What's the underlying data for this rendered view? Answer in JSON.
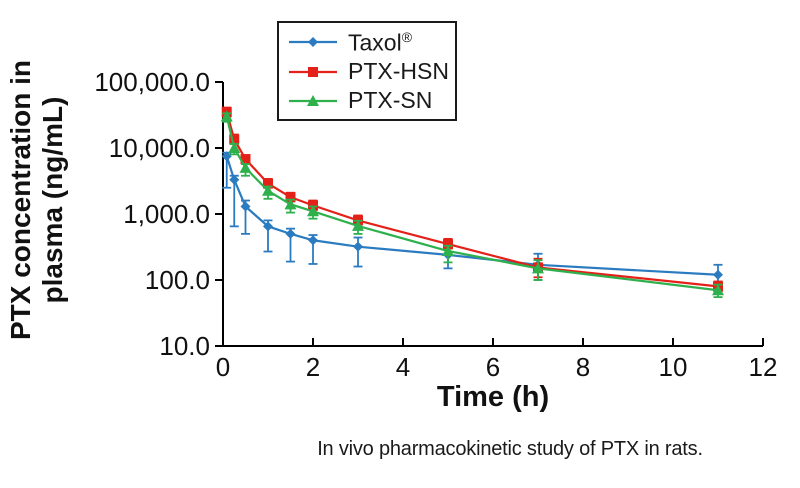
{
  "figure": {
    "caption": "In vivo pharmacokinetic study of PTX in rats."
  },
  "colors": {
    "axis": "#000000",
    "taxol_blue": "#2B7BC0",
    "ptx_hsn_red": "#E32119",
    "ptx_sn_green": "#2EB04C",
    "background": "#FFFFFF"
  },
  "chart_data": {
    "type": "line",
    "title": "",
    "xlabel": "Time (h)",
    "ylabel": "PTX concentration in plasma (ng/mL)",
    "ylabel_line1": "PTX concentration in",
    "ylabel_line2": "plasma (ng/mL)",
    "y_scale": "log",
    "x_axis": {
      "min": 0,
      "max": 12,
      "tick_values": [
        0,
        2,
        4,
        6,
        8,
        10,
        12
      ],
      "tick_labels": [
        "0",
        "2",
        "4",
        "6",
        "8",
        "10",
        "12"
      ]
    },
    "y_axis": {
      "min": 10,
      "max": 100000,
      "tick_values": [
        100000,
        10000,
        1000,
        100,
        10
      ],
      "tick_labels": [
        "100,000.0",
        "10,000.0",
        "1,000.0",
        "100.0",
        "10.0"
      ]
    },
    "grid": false,
    "legend_position": "top-center-inside-bordered",
    "x": [
      0.083,
      0.25,
      0.5,
      1,
      1.5,
      2,
      3,
      5,
      7,
      11
    ],
    "series": [
      {
        "name": "Taxol®",
        "marker": "diamond",
        "color": "#2B7BC0",
        "values": [
          7500,
          3300,
          1300,
          650,
          500,
          400,
          320,
          240,
          170,
          120
        ],
        "err_lo": [
          2500,
          650,
          500,
          270,
          190,
          175,
          160,
          150,
          100,
          85
        ],
        "err_hi": [
          8500,
          3800,
          1600,
          800,
          600,
          480,
          440,
          400,
          250,
          170
        ]
      },
      {
        "name": "PTX-HSN",
        "marker": "square",
        "color": "#E32119",
        "values": [
          35000,
          13500,
          6800,
          2900,
          1800,
          1350,
          800,
          350,
          155,
          80
        ],
        "err_lo": [
          30000,
          11500,
          6000,
          2500,
          1550,
          1150,
          700,
          300,
          110,
          65
        ],
        "err_hi": [
          41000,
          16000,
          7700,
          3400,
          2100,
          1600,
          950,
          420,
          210,
          95
        ]
      },
      {
        "name": "PTX-SN",
        "marker": "triangle",
        "color": "#2EB04C",
        "values": [
          30000,
          10000,
          5000,
          2250,
          1400,
          1100,
          660,
          275,
          150,
          70
        ],
        "err_lo": [
          25000,
          8000,
          3800,
          1700,
          1050,
          850,
          500,
          185,
          100,
          55
        ],
        "err_hi": [
          33500,
          11500,
          5700,
          2600,
          1650,
          1300,
          790,
          330,
          200,
          85
        ]
      }
    ]
  }
}
